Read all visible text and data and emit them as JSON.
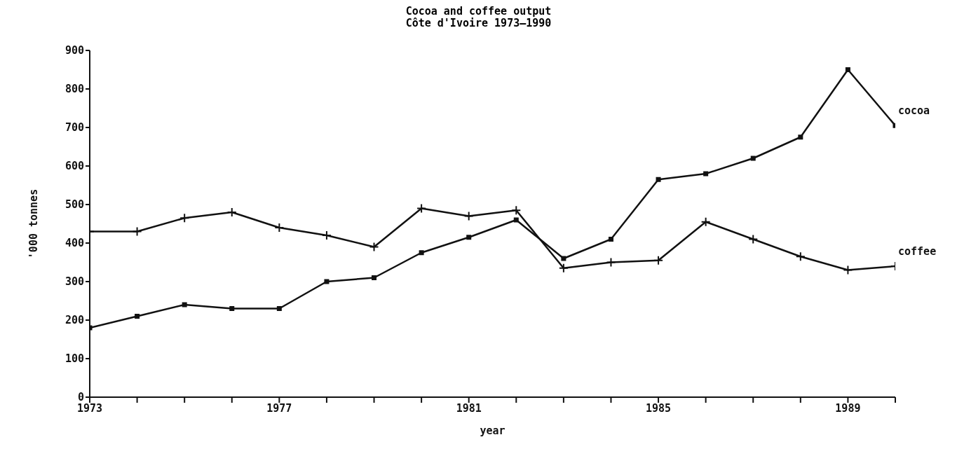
{
  "chart_data": {
    "type": "line",
    "title": "Cocoa and coffee output",
    "subtitle": "Côte d'Ivoire 1973–1990",
    "xlabel": "year",
    "ylabel": "'000 tonnes",
    "x": [
      1973,
      1974,
      1975,
      1976,
      1977,
      1978,
      1979,
      1980,
      1981,
      1982,
      1983,
      1984,
      1985,
      1986,
      1987,
      1988,
      1989,
      1990
    ],
    "series": [
      {
        "name": "cocoa",
        "color": "#111111",
        "marker": "square",
        "values": [
          180,
          210,
          240,
          230,
          230,
          300,
          310,
          375,
          415,
          460,
          360,
          410,
          565,
          580,
          620,
          675,
          850,
          705
        ]
      },
      {
        "name": "coffee",
        "color": "#111111",
        "marker": "cross",
        "values": [
          430,
          430,
          465,
          480,
          440,
          420,
          390,
          490,
          470,
          485,
          335,
          350,
          355,
          455,
          410,
          365,
          330,
          340
        ]
      }
    ],
    "xlim": [
      1973,
      1990
    ],
    "xticks": [
      1973,
      {
        "value": 1974,
        "label": null
      },
      {
        "value": 1975,
        "label": null
      },
      {
        "value": 1976,
        "label": null
      },
      1977,
      {
        "value": 1978,
        "label": null
      },
      {
        "value": 1979,
        "label": null
      },
      {
        "value": 1980,
        "label": null
      },
      1981,
      {
        "value": 1982,
        "label": null
      },
      {
        "value": 1983,
        "label": null
      },
      {
        "value": 1984,
        "label": null
      },
      1985,
      {
        "value": 1986,
        "label": null
      },
      {
        "value": 1987,
        "label": null
      },
      {
        "value": 1988,
        "label": null
      },
      1989,
      {
        "value": 1990,
        "label": null
      }
    ],
    "ylim": [
      0,
      900
    ],
    "yticks": [
      0,
      100,
      200,
      300,
      400,
      500,
      600,
      700,
      800,
      900
    ],
    "grid": false,
    "legend": false,
    "line_style": "solid"
  }
}
